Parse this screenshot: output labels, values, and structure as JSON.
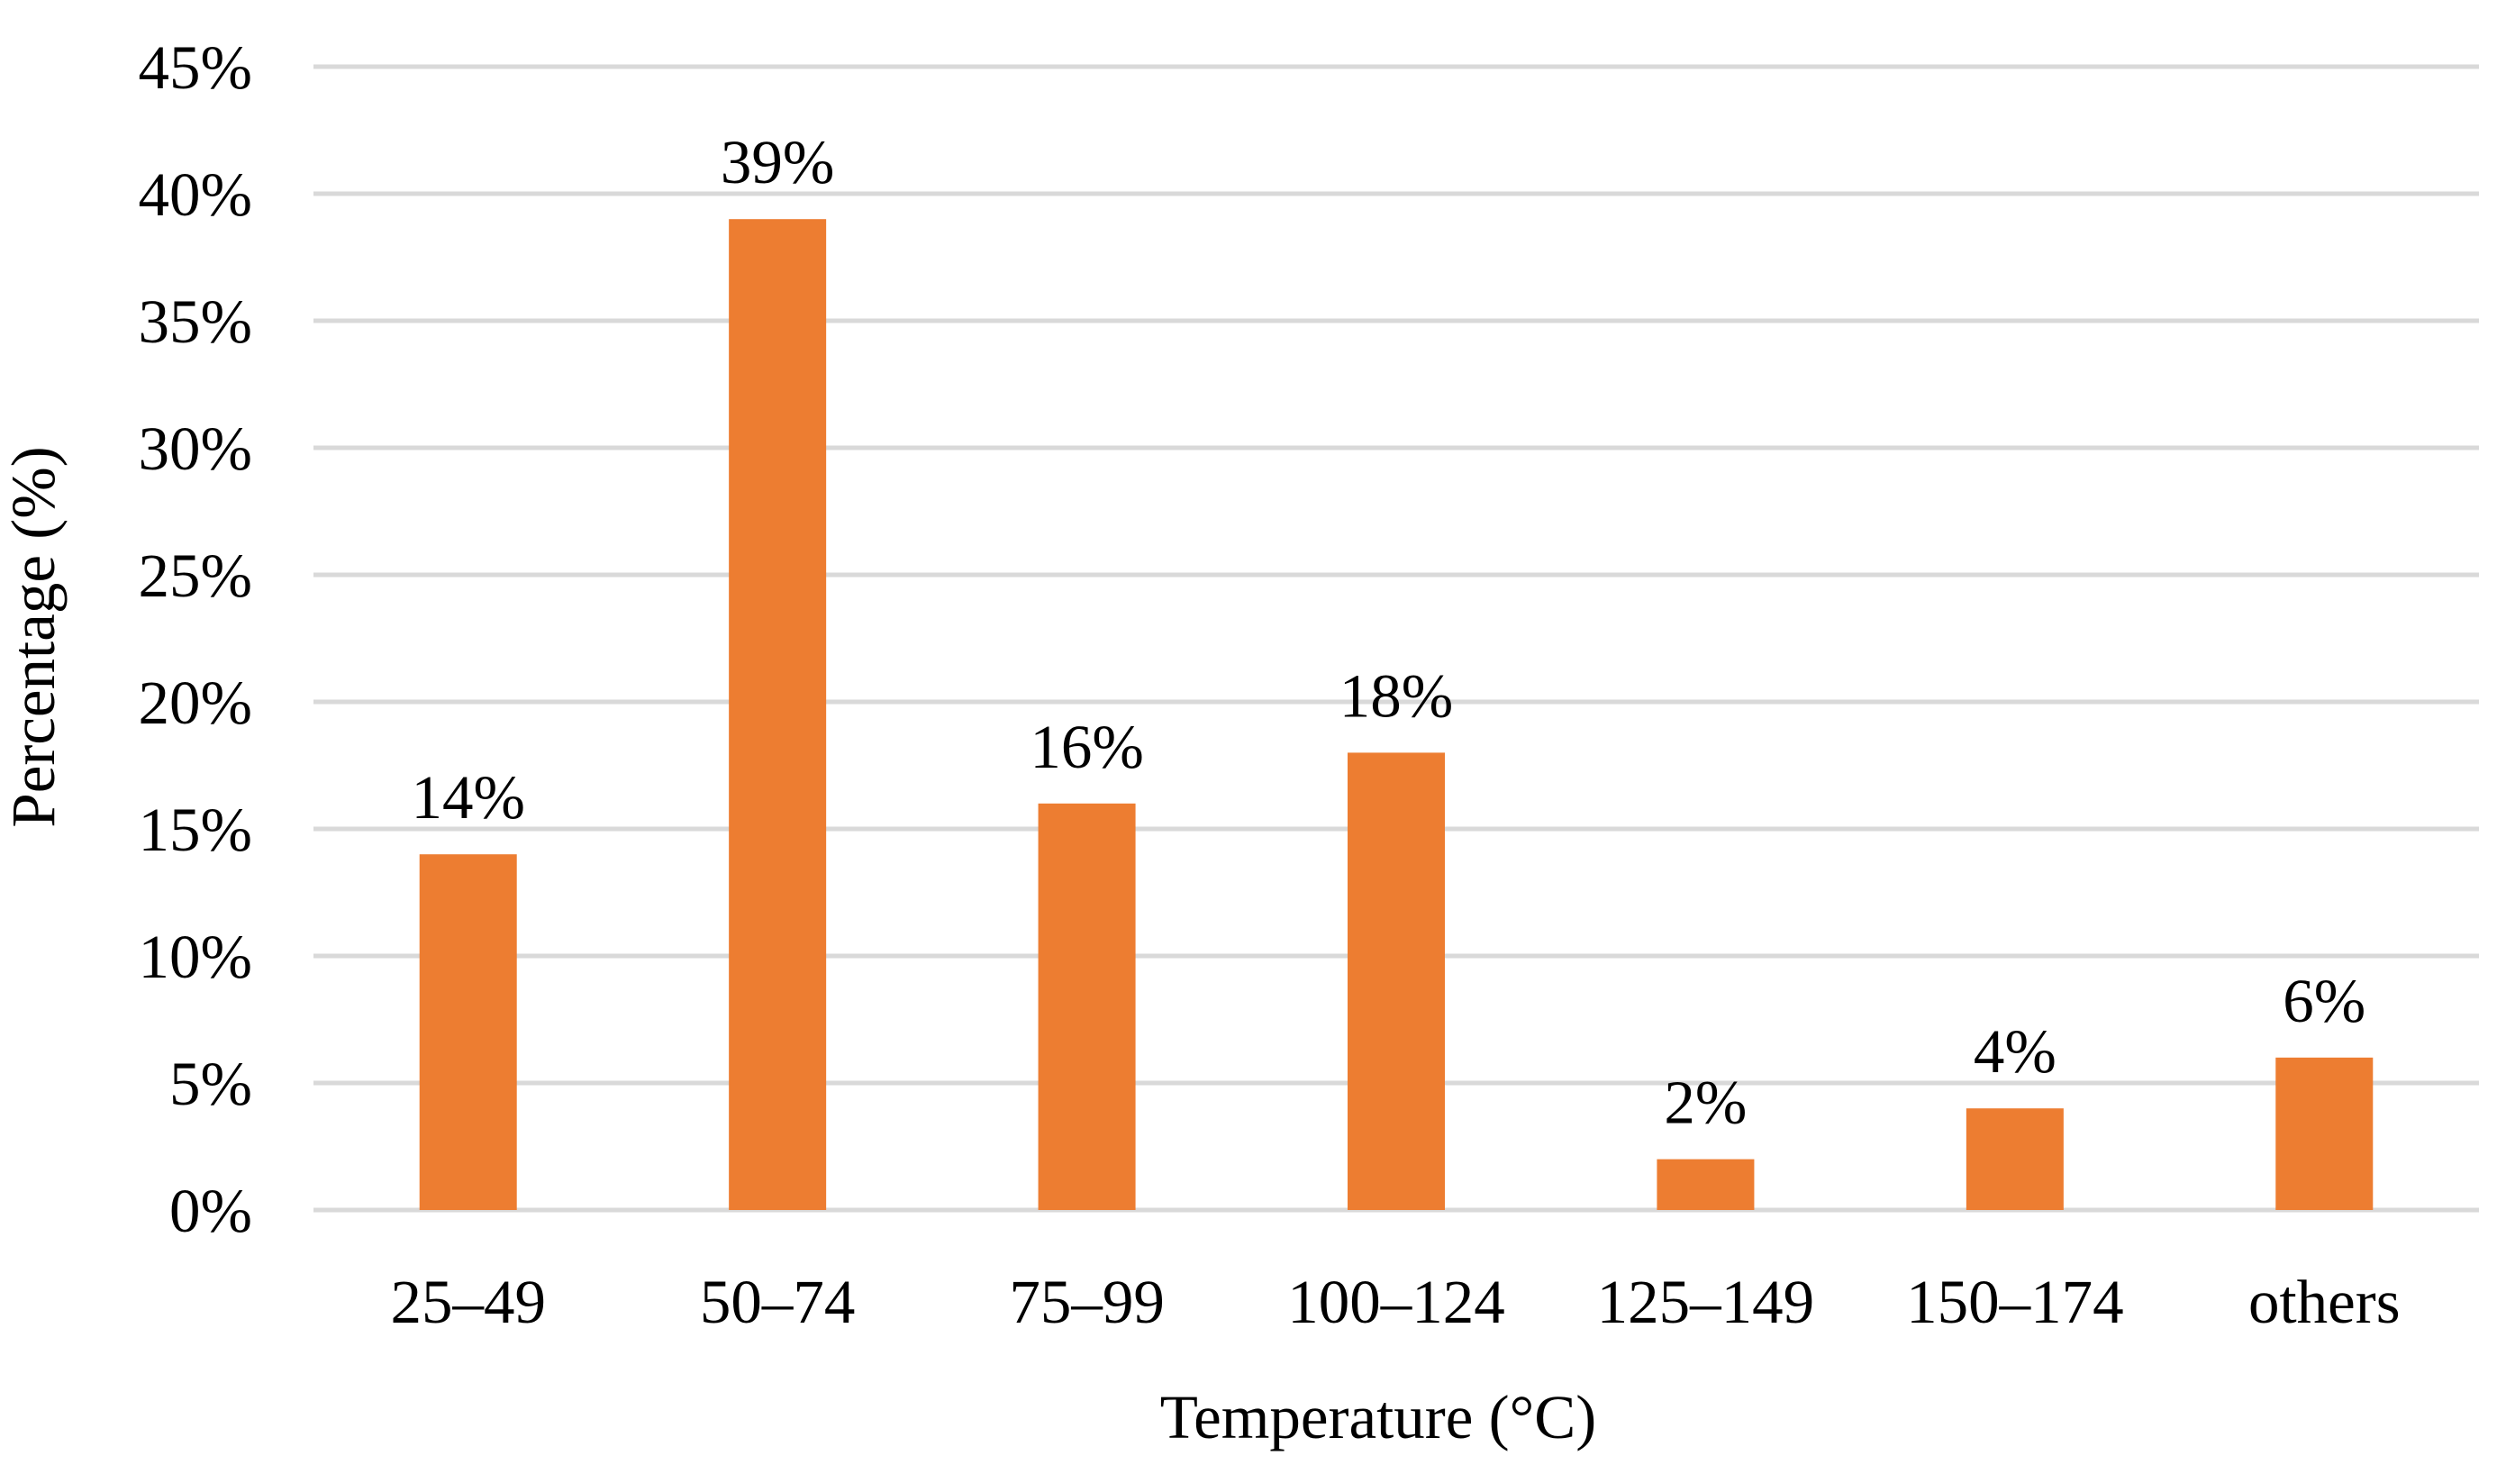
{
  "chart_data": {
    "type": "bar",
    "title": "",
    "xlabel": "Temperature (°C)",
    "ylabel": "Percentage (%)",
    "categories": [
      "25–49",
      "50–74",
      "75–99",
      "100–124",
      "125–149",
      "150–174",
      "others"
    ],
    "values": [
      14,
      39,
      16,
      18,
      2,
      4,
      6
    ],
    "data_labels": [
      "14%",
      "39%",
      "16%",
      "18%",
      "2%",
      "4%",
      "6%"
    ],
    "ylim": [
      0,
      45
    ],
    "y_ticks": [
      0,
      5,
      10,
      15,
      20,
      25,
      30,
      35,
      40,
      45
    ],
    "y_tick_labels": [
      "0%",
      "5%",
      "10%",
      "15%",
      "20%",
      "25%",
      "30%",
      "35%",
      "40%",
      "45%"
    ],
    "grid": true,
    "legend": "none"
  },
  "colors": {
    "bar": "#ed7d31",
    "grid": "#d9d9d9",
    "text": "#000000"
  }
}
